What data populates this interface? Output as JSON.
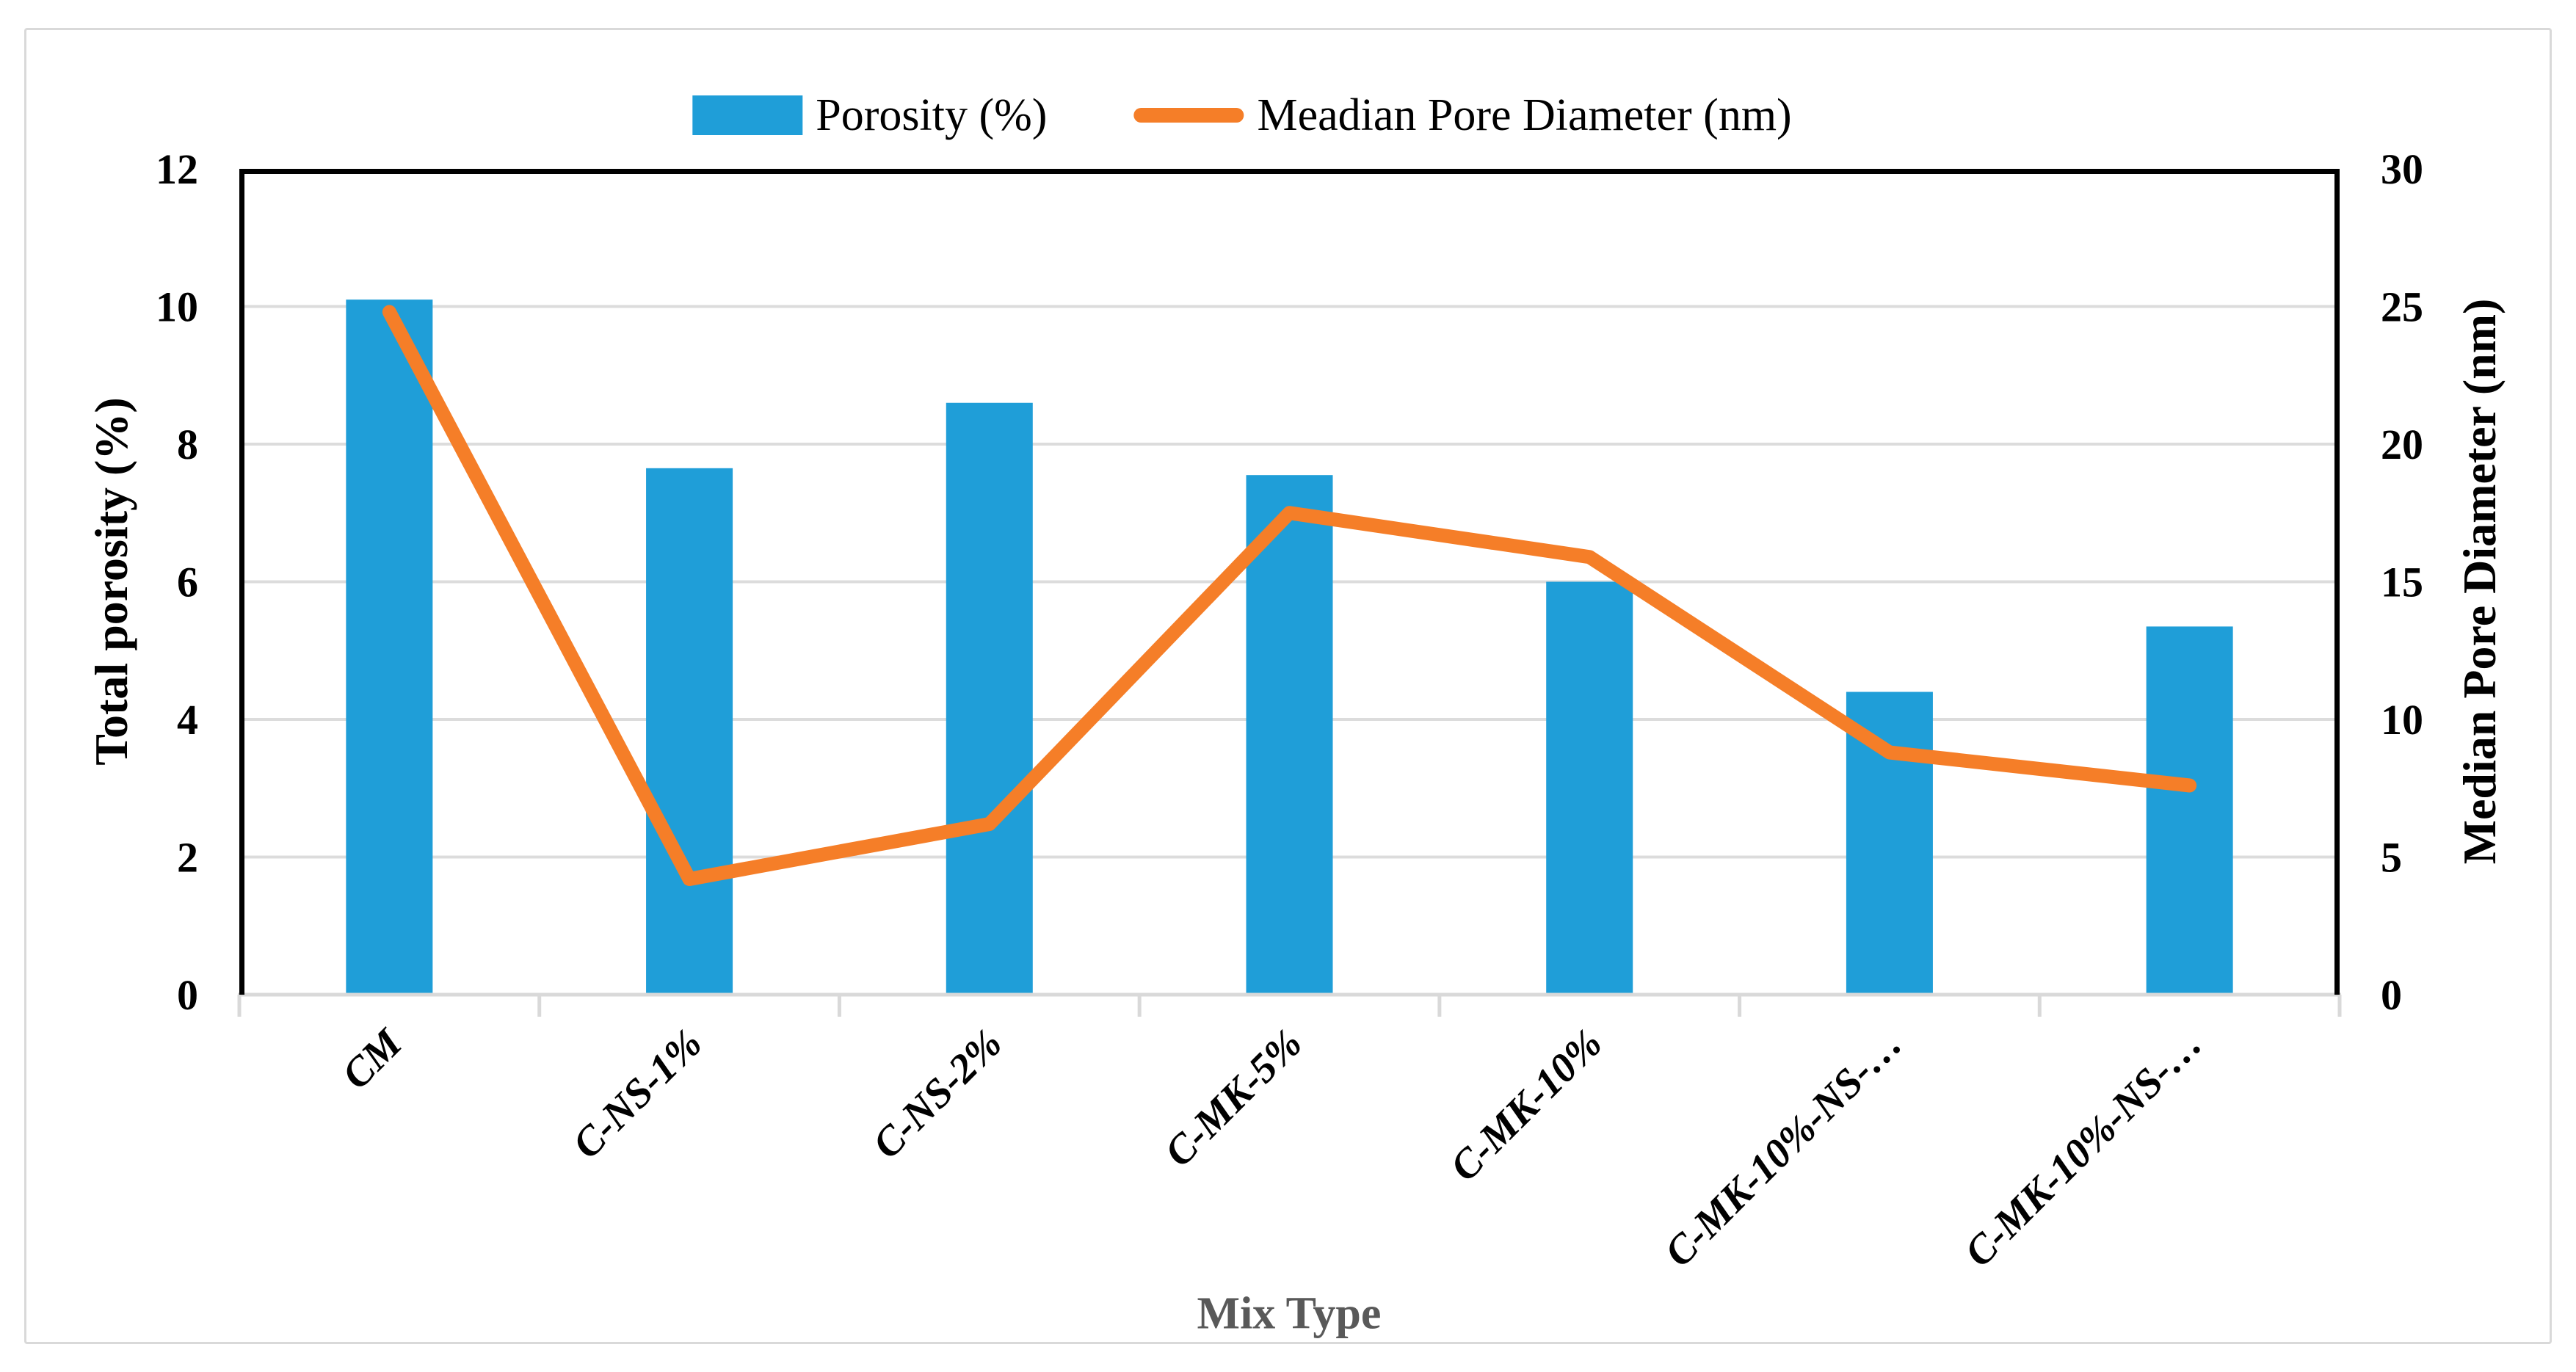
{
  "chart_data": {
    "type": "bar+line",
    "categories": [
      "CM",
      "C-NS-1%",
      "C-NS-2%",
      "C-MK-5%",
      "C-MK-10%",
      "C-MK-10%-NS-…",
      "C-MK-10%-NS-…"
    ],
    "series": [
      {
        "name": "Porosity (%)",
        "type": "bar",
        "y_axis": "left",
        "color": "#1F9ED8",
        "values": [
          10.1,
          7.65,
          8.6,
          7.55,
          6.0,
          4.4,
          5.35
        ]
      },
      {
        "name": "Meadian Pore Diameter (nm)",
        "type": "line",
        "y_axis": "right",
        "color": "#F57E28",
        "values": [
          24.8,
          4.2,
          6.2,
          17.5,
          15.9,
          8.8,
          7.6
        ]
      }
    ],
    "xlabel": "Mix Type",
    "ylabel_left": "Total porosity (%)",
    "ylabel_right": "Median Pore Diameter (nm)",
    "ylim_left": [
      0,
      12
    ],
    "ylim_right": [
      0,
      30
    ],
    "yticks_left": [
      0,
      2,
      4,
      6,
      8,
      10,
      12
    ],
    "yticks_right": [
      0,
      5,
      10,
      15,
      20,
      25,
      30
    ],
    "grid": true,
    "legend_position": "top",
    "colors": {
      "gridline": "#DCDCDC",
      "axis_black": "#000000",
      "bottom_axis_gray": "#D9D9D9",
      "x_title_gray": "#595959",
      "figure_frame": "#D9D9D9"
    }
  }
}
